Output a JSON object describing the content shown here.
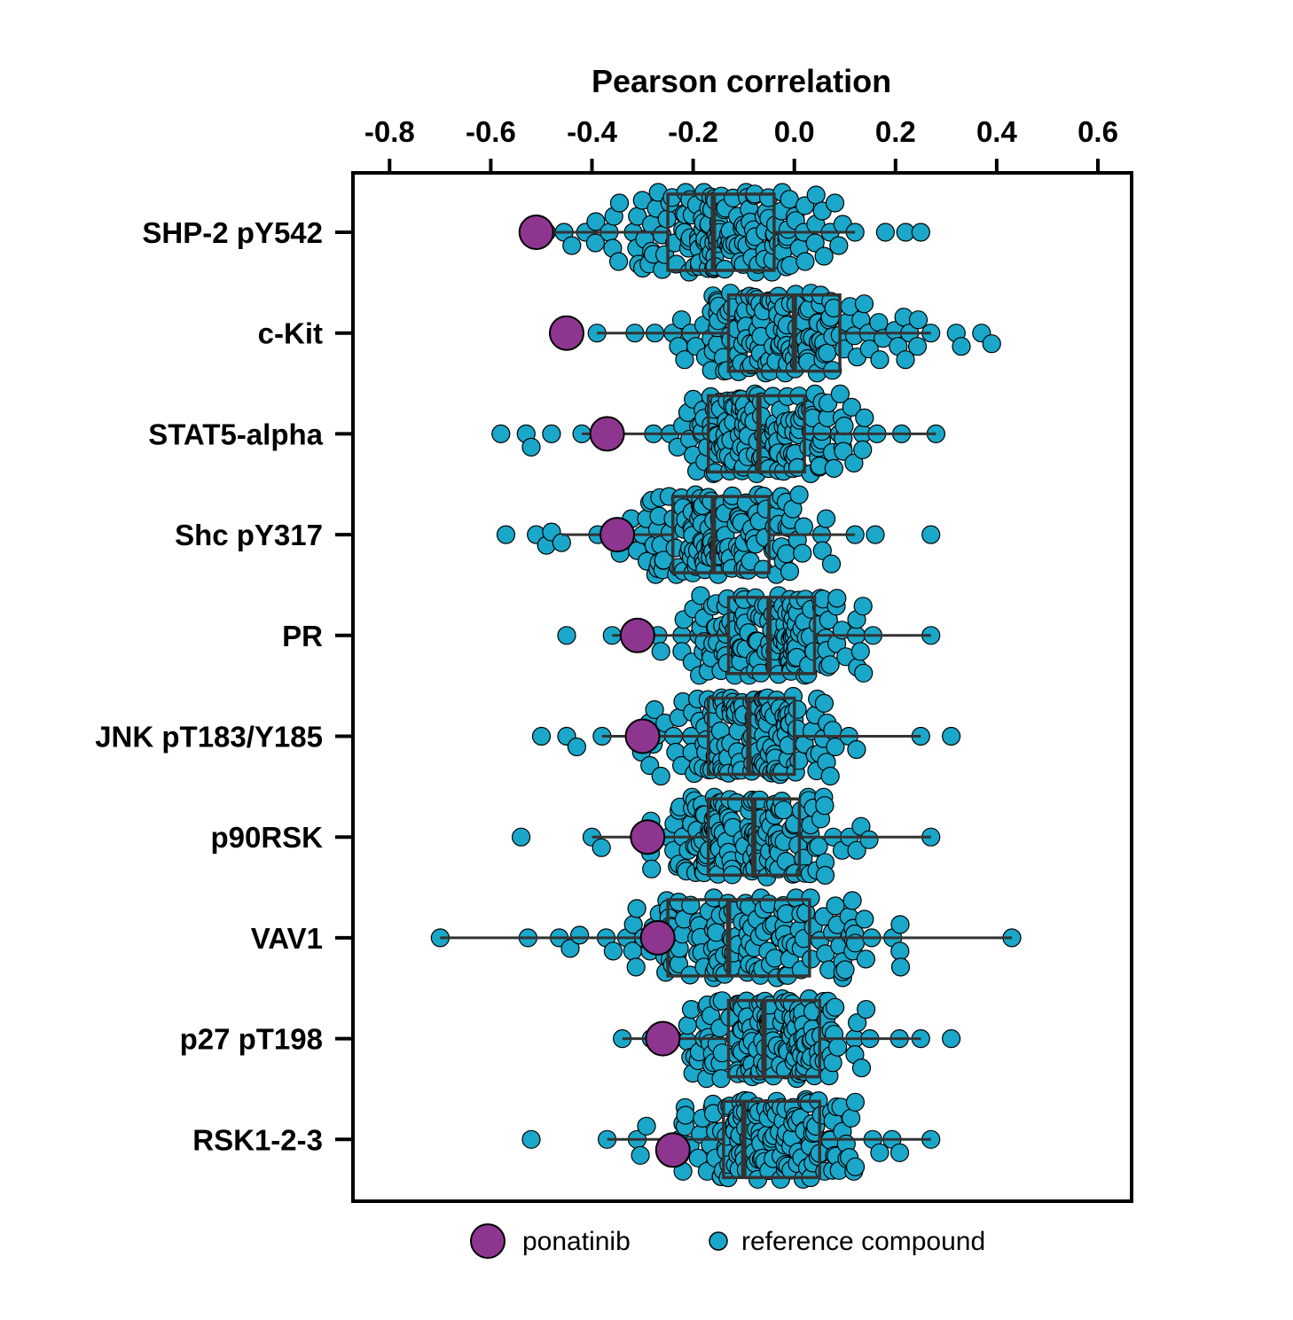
{
  "chart_data": {
    "type": "scatter",
    "subtype": "beeswarm-with-boxplot",
    "xlabel": "Pearson correlation",
    "xlim": [
      -0.87,
      0.67
    ],
    "x_ticks": [
      -0.8,
      -0.6,
      -0.4,
      -0.2,
      0.0,
      0.2,
      0.4,
      0.6
    ],
    "x_tick_labels": [
      "-0.8",
      "-0.6",
      "-0.4",
      "-0.2",
      "0.0",
      "0.2",
      "0.4",
      "0.6"
    ],
    "x_axis_position": "top",
    "grid": false,
    "legend": {
      "placement": "bottom-center",
      "entries": [
        {
          "name": "ponatinib",
          "color": "#8E3590"
        },
        {
          "name": "reference compound",
          "color": "#1AA7C9"
        }
      ]
    },
    "colors": {
      "ponatinib": "#8E3590",
      "reference": "#1AA7C9",
      "box": "#333333"
    },
    "categories": [
      "SHP-2 pY542",
      "c-Kit",
      "STAT5-alpha",
      "Shc pY317",
      "PR",
      "JNK pT183/Y185",
      "p90RSK",
      "VAV1",
      "p27 pT198",
      "RSK1-2-3"
    ],
    "rows": [
      {
        "label": "SHP-2 pY542",
        "ponatinib": -0.51,
        "box": {
          "q1": -0.25,
          "median": -0.16,
          "q3": -0.04,
          "whisker_low": -0.49,
          "whisker_high": 0.12
        },
        "reference_range": [
          -0.51,
          0.25
        ],
        "outliers": [
          0.18,
          0.22,
          0.25
        ]
      },
      {
        "label": "c-Kit",
        "ponatinib": -0.45,
        "box": {
          "q1": -0.13,
          "median": 0.0,
          "q3": 0.09,
          "whisker_low": -0.39,
          "whisker_high": 0.27
        },
        "reference_range": [
          -0.39,
          0.39
        ],
        "outliers": [
          0.32,
          0.33,
          0.37,
          0.39
        ]
      },
      {
        "label": "STAT5-alpha",
        "ponatinib": -0.37,
        "box": {
          "q1": -0.17,
          "median": -0.07,
          "q3": 0.02,
          "whisker_low": -0.42,
          "whisker_high": 0.28
        },
        "reference_range": [
          -0.58,
          0.28
        ],
        "outliers": [
          -0.58,
          -0.53,
          -0.52,
          -0.48
        ]
      },
      {
        "label": "Shc pY317",
        "ponatinib": -0.35,
        "box": {
          "q1": -0.24,
          "median": -0.16,
          "q3": -0.05,
          "whisker_low": -0.46,
          "whisker_high": 0.12
        },
        "reference_range": [
          -0.57,
          0.27
        ],
        "outliers": [
          -0.57,
          -0.51,
          -0.49,
          -0.48,
          0.16,
          0.27
        ]
      },
      {
        "label": "PR",
        "ponatinib": -0.31,
        "box": {
          "q1": -0.13,
          "median": -0.05,
          "q3": 0.04,
          "whisker_low": -0.36,
          "whisker_high": 0.27
        },
        "reference_range": [
          -0.45,
          0.27
        ],
        "outliers": [
          -0.45
        ]
      },
      {
        "label": "JNK pT183/Y185",
        "ponatinib": -0.3,
        "box": {
          "q1": -0.17,
          "median": -0.09,
          "q3": 0.0,
          "whisker_low": -0.38,
          "whisker_high": 0.25
        },
        "reference_range": [
          -0.5,
          0.31
        ],
        "outliers": [
          -0.5,
          -0.45,
          -0.43,
          0.31
        ]
      },
      {
        "label": "p90RSK",
        "ponatinib": -0.29,
        "box": {
          "q1": -0.17,
          "median": -0.08,
          "q3": 0.01,
          "whisker_low": -0.4,
          "whisker_high": 0.27
        },
        "reference_range": [
          -0.54,
          0.27
        ],
        "outliers": [
          -0.54
        ]
      },
      {
        "label": "VAV1",
        "ponatinib": -0.27,
        "box": {
          "q1": -0.25,
          "median": -0.13,
          "q3": 0.03,
          "whisker_low": -0.7,
          "whisker_high": 0.43
        },
        "reference_range": [
          -0.7,
          0.43
        ],
        "outliers": []
      },
      {
        "label": "p27 pT198",
        "ponatinib": -0.26,
        "box": {
          "q1": -0.13,
          "median": -0.06,
          "q3": 0.05,
          "whisker_low": -0.34,
          "whisker_high": 0.25
        },
        "reference_range": [
          -0.34,
          0.31
        ],
        "outliers": [
          0.31
        ]
      },
      {
        "label": "RSK1-2-3",
        "ponatinib": -0.24,
        "box": {
          "q1": -0.14,
          "median": -0.1,
          "q3": 0.05,
          "whisker_low": -0.37,
          "whisker_high": 0.27
        },
        "reference_range": [
          -0.52,
          0.27
        ],
        "outliers": [
          -0.52
        ]
      }
    ]
  }
}
